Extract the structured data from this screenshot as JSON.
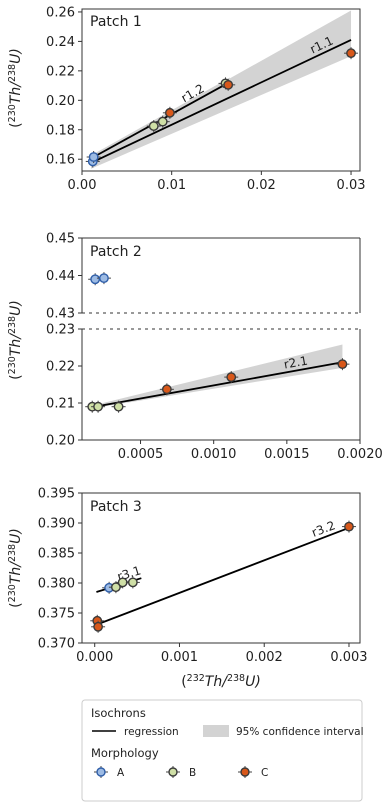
{
  "chart_data": [
    {
      "type": "scatter",
      "panel_label": "Patch 1",
      "ylabel_parts": [
        "(",
        "230",
        "Th/",
        "238",
        "U)"
      ],
      "xlim": [
        0.0,
        0.031
      ],
      "ylim": [
        0.152,
        0.262
      ],
      "xticks": [
        "0.00",
        "0.01",
        "0.02",
        "0.03"
      ],
      "yticks": [
        "0.16",
        "0.18",
        "0.20",
        "0.22",
        "0.24",
        "0.26"
      ],
      "series": [
        {
          "name": "A",
          "points": [
            [
              0.0012,
              0.1585
            ],
            [
              0.0013,
              0.1615
            ]
          ]
        },
        {
          "name": "B",
          "points": [
            [
              0.008,
              0.1825
            ],
            [
              0.009,
              0.1855
            ],
            [
              0.016,
              0.2115
            ]
          ]
        },
        {
          "name": "C",
          "points": [
            [
              0.0098,
              0.1915
            ],
            [
              0.0163,
              0.2105
            ],
            [
              0.03,
              0.232
            ]
          ]
        }
      ],
      "regressions": [
        {
          "label": "r1.1",
          "x": [
            0.001,
            0.03
          ],
          "y": [
            0.1575,
            0.241
          ],
          "ci_lower": [
            0.1535,
            0.23
          ],
          "ci_upper": [
            0.162,
            0.261
          ]
        },
        {
          "label": "r1.2",
          "x": [
            0.001,
            0.0165
          ],
          "y": [
            0.1605,
            0.2125
          ],
          "ci_lower": [
            0.158,
            0.209
          ],
          "ci_upper": [
            0.1625,
            0.2155
          ]
        }
      ]
    },
    {
      "type": "scatter",
      "panel_label": "Patch 2",
      "ylabel_parts": [
        "(",
        "230",
        "Th/",
        "238",
        "U)"
      ],
      "xlim": [
        0.0001,
        0.002
      ],
      "ylim_top": [
        0.43,
        0.45
      ],
      "ylim_bottom": [
        0.2,
        0.23
      ],
      "xticks": [
        "0.0005",
        "0.0010",
        "0.0015",
        "0.0020"
      ],
      "yticks_top": [
        "0.43",
        "0.44",
        "0.45"
      ],
      "yticks_bottom": [
        "0.20",
        "0.21",
        "0.22",
        "0.23"
      ],
      "series": [
        {
          "name": "A",
          "points": [
            [
              0.00019,
              0.439
            ],
            [
              0.00025,
              0.4393
            ]
          ]
        },
        {
          "name": "B",
          "points": [
            [
              0.00017,
              0.209
            ],
            [
              0.00021,
              0.209
            ],
            [
              0.00035,
              0.209
            ]
          ]
        },
        {
          "name": "C",
          "points": [
            [
              0.00068,
              0.2137
            ],
            [
              0.00112,
              0.217
            ],
            [
              0.00188,
              0.2205
            ]
          ]
        }
      ],
      "regressions": [
        {
          "label": "r2.1",
          "x": [
            0.00016,
            0.00188
          ],
          "y": [
            0.2088,
            0.221
          ],
          "ci_lower": [
            0.2085,
            0.2195
          ],
          "ci_upper": [
            0.2092,
            0.2258
          ]
        }
      ]
    },
    {
      "type": "scatter",
      "panel_label": "Patch 3",
      "ylabel_parts": [
        "(",
        "230",
        "Th/",
        "238",
        "U)"
      ],
      "xlabel_parts": [
        "(",
        "232",
        "Th/",
        "238",
        "U)"
      ],
      "xlim": [
        -0.00015,
        0.00313
      ],
      "ylim": [
        0.37,
        0.395
      ],
      "xticks": [
        "0.000",
        "0.001",
        "0.002",
        "0.003"
      ],
      "yticks": [
        "0.370",
        "0.375",
        "0.380",
        "0.385",
        "0.390",
        "0.395"
      ],
      "series": [
        {
          "name": "A",
          "points": [
            [
              0.00017,
              0.3792
            ]
          ]
        },
        {
          "name": "B",
          "points": [
            [
              0.00025,
              0.3793
            ],
            [
              0.00033,
              0.3801
            ],
            [
              0.00045,
              0.3801
            ]
          ]
        },
        {
          "name": "C",
          "points": [
            [
              3e-05,
              0.3737
            ],
            [
              4e-05,
              0.3727
            ],
            [
              0.003,
              0.3894
            ]
          ]
        }
      ],
      "regressions": [
        {
          "label": "r3.1",
          "x": [
            2e-05,
            0.00055
          ],
          "y": [
            0.3785,
            0.3808
          ]
        },
        {
          "label": "r3.2",
          "x": [
            3e-05,
            0.003
          ],
          "y": [
            0.3731,
            0.3892
          ]
        }
      ]
    }
  ],
  "legend": {
    "isochrons_title": "Isochrons",
    "regression_label": "regression",
    "ci_label": "95% confidence interval",
    "morphology_title": "Morphology",
    "items": [
      {
        "label": "A",
        "fill": "#9dbbe4",
        "edge": "#2f5ea8"
      },
      {
        "label": "B",
        "fill": "#cfdfa6",
        "edge": "#3a3a3a"
      },
      {
        "label": "C",
        "fill": "#d8581a",
        "edge": "#3a3a3a"
      }
    ]
  },
  "colors": {
    "A_fill": "#9dbbe4",
    "A_edge": "#2f5ea8",
    "B_fill": "#cfdfa6",
    "B_edge": "#3a3a3a",
    "C_fill": "#d8581a",
    "C_edge": "#3a3a3a",
    "ci_fill": "#d3d3d3",
    "line": "#000000"
  }
}
